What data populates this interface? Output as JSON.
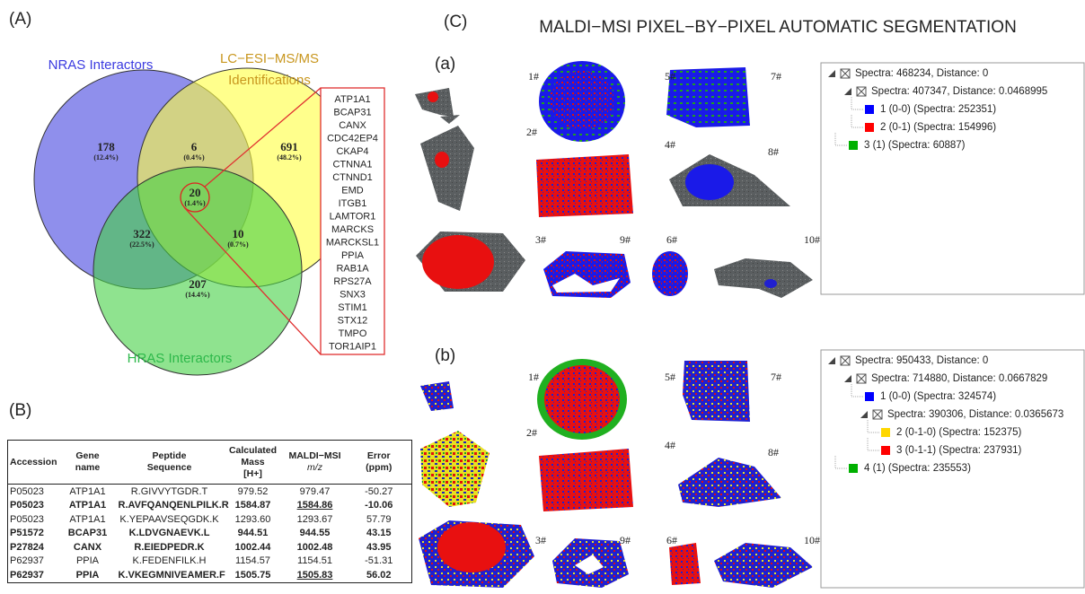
{
  "panel_a": {
    "label": "(A)",
    "sets": [
      {
        "name": [
          "NRAS Interactors"
        ],
        "color": "#4b4be0"
      },
      {
        "name": [
          "LC−ESI−MS/MS",
          "Identifications"
        ],
        "color": "#ffff40"
      },
      {
        "name": [
          "HRAS Interactors"
        ],
        "color": "#45d045"
      }
    ],
    "regions": [
      {
        "count": 178,
        "percent": "(12.4%)"
      },
      {
        "count": 6,
        "percent": "(0.4%)"
      },
      {
        "count": 691,
        "percent": "(48.2%)"
      },
      {
        "count": 20,
        "percent": "(1.4%)"
      },
      {
        "count": 322,
        "percent": "(22.5%)"
      },
      {
        "count": 10,
        "percent": "(0.7%)"
      },
      {
        "count": 207,
        "percent": "(14.4%)"
      }
    ],
    "highlight_genes": [
      "ATP1A1",
      "BCAP31",
      "CANX",
      "CDC42EP4",
      "CKAP4",
      "CTNNA1",
      "CTNND1",
      "EMD",
      "ITGB1",
      "LAMTOR1",
      "MARCKS",
      "MARCKSL1",
      "PPIA",
      "RAB1A",
      "RPS27A",
      "SNX3",
      "STIM1",
      "STX12",
      "TMPO",
      "TOR1AIP1"
    ]
  },
  "panel_b": {
    "label": "(B)",
    "table": {
      "headers": [
        [
          "Accession"
        ],
        [
          "Gene",
          "name"
        ],
        [
          "Peptide",
          "Sequence"
        ],
        [
          "Calculated",
          "Mass",
          "[H+]"
        ],
        [
          "MALDI−MSI",
          "m/z"
        ],
        [
          "Error",
          "(ppm)"
        ]
      ],
      "rows": [
        {
          "cells": [
            "P05023",
            "ATP1A1",
            "R.GIVVYTGDR.T",
            "979.52",
            "979.47",
            "-50.27"
          ],
          "bold": false,
          "underlined_columns": []
        },
        {
          "cells": [
            "P05023",
            "ATP1A1",
            "R.AVFQANQENLPILK.R",
            "1584.87",
            "1584.86",
            "-10.06"
          ],
          "bold": true,
          "underlined_columns": [
            4
          ]
        },
        {
          "cells": [
            "P05023",
            "ATP1A1",
            "K.YEPAAVSEQGDK.K",
            "1293.60",
            "1293.67",
            "57.79"
          ],
          "bold": false,
          "underlined_columns": []
        },
        {
          "cells": [
            "P51572",
            "BCAP31",
            "K.LDVGNAEVK.L",
            "944.51",
            "944.55",
            "43.15"
          ],
          "bold": true,
          "underlined_columns": []
        },
        {
          "cells": [
            "P27824",
            "CANX",
            "R.EIEDPEDR.K",
            "1002.44",
            "1002.48",
            "43.95"
          ],
          "bold": true,
          "underlined_columns": []
        },
        {
          "cells": [
            "P62937",
            "PPIA",
            "K.FEDENFILK.H",
            "1154.57",
            "1154.51",
            "-51.31"
          ],
          "bold": false,
          "underlined_columns": []
        },
        {
          "cells": [
            "P62937",
            "PPIA",
            "K.VKEGMNIVEAMER.F",
            "1505.75",
            "1505.83",
            "56.02"
          ],
          "bold": true,
          "underlined_columns": [
            4
          ]
        }
      ]
    }
  },
  "panel_c": {
    "label": "(C)",
    "title": "MALDI−MSI PIXEL−BY−PIXEL AUTOMATIC SEGMENTATION",
    "segmentations": [
      {
        "label": "(a)",
        "samples": [
          "1#",
          "2#",
          "3#",
          "4#",
          "5#",
          "6#",
          "7#",
          "8#",
          "9#",
          "10#"
        ],
        "tree": [
          {
            "text": "Spectra: 468234, Distance: 0",
            "level": 0
          },
          {
            "text": "Spectra: 407347, Distance: 0.0468995",
            "level": 1
          },
          {
            "text": "1 (0-0) (Spectra: 252351)",
            "level": 2,
            "color": "#0000ff"
          },
          {
            "text": "2 (0-1) (Spectra: 154996)",
            "level": 2,
            "color": "#ff0000"
          },
          {
            "text": "3 (1) (Spectra: 60887)",
            "level": 1,
            "color": "#00b000"
          }
        ]
      },
      {
        "label": "(b)",
        "samples": [
          "1#",
          "2#",
          "3#",
          "4#",
          "5#",
          "6#",
          "7#",
          "8#",
          "9#",
          "10#"
        ],
        "tree": [
          {
            "text": "Spectra: 950433, Distance: 0",
            "level": 0
          },
          {
            "text": "Spectra: 714880, Distance: 0.0667829",
            "level": 1
          },
          {
            "text": "1 (0-0) (Spectra: 324574)",
            "level": 2,
            "color": "#0000ff"
          },
          {
            "text": "Spectra: 390306, Distance: 0.0365673",
            "level": 2
          },
          {
            "text": "2 (0-1-0) (Spectra: 152375)",
            "level": 3,
            "color": "#ffd700"
          },
          {
            "text": "3 (0-1-1) (Spectra: 237931)",
            "level": 3,
            "color": "#ff0000"
          },
          {
            "text": "4 (1) (Spectra: 235553)",
            "level": 1,
            "color": "#00b000"
          }
        ]
      }
    ]
  }
}
